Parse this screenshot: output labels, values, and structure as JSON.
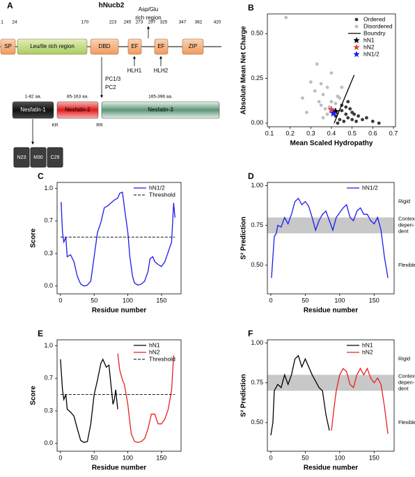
{
  "diagram": {
    "panel_label": "A",
    "title": "hNucb2",
    "positions": [
      1,
      24,
      170,
      223,
      245,
      273,
      297,
      325,
      347,
      382,
      420
    ],
    "domains": [
      "SP",
      "Leu/Ile rich region",
      "DBD",
      "EF",
      "EF",
      "ZIP"
    ],
    "region_label": [
      "Asp/Glu",
      "rich region"
    ],
    "motifs": [
      "HLH1",
      "HLH2"
    ],
    "cleavage": [
      "PC1/3",
      "PC2"
    ],
    "fragments": [
      {
        "range": "1-82 aa.",
        "name": "Nesfatin-1"
      },
      {
        "range": "85-163 aa.",
        "name": "Nesfatin-2"
      },
      {
        "range": "165-396 aa.",
        "name": "Nesfatin-3"
      }
    ],
    "sites": [
      "KR",
      "RR"
    ],
    "subfragments": [
      "N23",
      "M30",
      "C29"
    ]
  },
  "chart_data": [
    {
      "type": "scatter",
      "panel_label": "B",
      "x_label": "Mean Scaled Hydropathy",
      "y_label": "Absolute Mean Net Charge",
      "xlim": [
        0.09,
        0.71
      ],
      "ylim": [
        -0.02,
        0.61
      ],
      "xticks": [
        0.1,
        0.2,
        0.3,
        0.4,
        0.5,
        0.6,
        0.7
      ],
      "yticks": [
        {
          "value": 0,
          "label": "0.00"
        },
        {
          "value": 0.25,
          "label": "0.25"
        },
        {
          "value": 0.5,
          "label": "0.50"
        }
      ],
      "legend": "upper right",
      "series": [
        {
          "name": "Ordered",
          "marker": "circle",
          "color": "#3a3a3a",
          "x": [
            0.42,
            0.44,
            0.45,
            0.46,
            0.47,
            0.48,
            0.49,
            0.5,
            0.51,
            0.52,
            0.53,
            0.55,
            0.57,
            0.6,
            0.63,
            0.45,
            0.48,
            0.5,
            0.43,
            0.47
          ],
          "values": [
            0.04,
            0.02,
            0.07,
            0.01,
            0.05,
            0.03,
            0.08,
            0.02,
            0.05,
            0.01,
            0.04,
            0.02,
            0.03,
            0.01,
            0.0,
            0.1,
            0.12,
            0.06,
            0.0,
            0.09
          ]
        },
        {
          "name": "Disordered",
          "marker": "circle",
          "color": "#bdbdbd",
          "x": [
            0.18,
            0.26,
            0.3,
            0.32,
            0.34,
            0.35,
            0.36,
            0.37,
            0.38,
            0.38,
            0.39,
            0.4,
            0.41,
            0.42,
            0.43,
            0.44,
            0.33,
            0.36,
            0.4,
            0.45,
            0.28,
            0.35
          ],
          "values": [
            0.59,
            0.14,
            0.23,
            0.18,
            0.12,
            0.1,
            0.16,
            0.08,
            0.05,
            0.2,
            0.09,
            0.12,
            0.07,
            0.11,
            0.15,
            0.14,
            0.33,
            0.03,
            0.28,
            0.2,
            0.06,
            0.22
          ]
        },
        {
          "name": "Boundry",
          "marker": "line",
          "color": "#000000",
          "x": [
            0.413,
            0.51
          ],
          "values": [
            0,
            0.269
          ]
        },
        {
          "name": "hN1",
          "marker": "star",
          "color": "#000000",
          "x": [
            0.42
          ],
          "values": [
            0.065
          ]
        },
        {
          "name": "hN2",
          "marker": "star",
          "color": "#e8403f",
          "x": [
            0.4
          ],
          "values": [
            0.075
          ]
        },
        {
          "name": "hN1/2",
          "marker": "star",
          "color": "#1a1aee",
          "x": [
            0.41
          ],
          "values": [
            0.055
          ]
        }
      ]
    },
    {
      "type": "line",
      "panel_label": "C",
      "x_label": "Residue number",
      "y_label": "Score",
      "xlim": [
        -5,
        179
      ],
      "ylim": [
        -0.08,
        1.06
      ],
      "xticks": [
        0,
        50,
        100,
        150
      ],
      "yticks": [
        {
          "value": 0,
          "label": "0.0"
        },
        {
          "value": 0.333,
          "label": "0.3"
        },
        {
          "value": 0.667,
          "label": "0.7"
        },
        {
          "value": 1,
          "label": "1.0"
        }
      ],
      "legend": "upper right",
      "series": [
        {
          "name": "hN1/2",
          "color": "#1a1aee",
          "x": [
            1,
            3,
            5,
            8,
            10,
            15,
            20,
            25,
            30,
            35,
            40,
            45,
            50,
            55,
            60,
            65,
            70,
            75,
            80,
            85,
            88,
            92,
            95,
            100,
            103,
            107,
            110,
            115,
            120,
            125,
            130,
            133,
            137,
            140,
            145,
            150,
            155,
            160,
            165,
            168,
            170
          ],
          "values": [
            0.86,
            0.55,
            0.45,
            0.5,
            0.3,
            0.32,
            0.25,
            0.1,
            0.02,
            0.0,
            0.01,
            0.05,
            0.3,
            0.55,
            0.65,
            0.8,
            0.82,
            0.85,
            0.88,
            0.9,
            0.95,
            0.96,
            0.8,
            0.55,
            0.3,
            0.1,
            0.03,
            0.01,
            0.02,
            0.05,
            0.15,
            0.28,
            0.3,
            0.25,
            0.22,
            0.2,
            0.25,
            0.35,
            0.45,
            0.85,
            0.7
          ]
        },
        {
          "name": "Threshold",
          "color": "#000000",
          "dash": true,
          "x": [
            0,
            170
          ],
          "values": [
            0.5,
            0.5
          ]
        }
      ]
    },
    {
      "type": "line",
      "panel_label": "D",
      "x_label": "Residue number",
      "y_label": "S² Prediction",
      "xlim": [
        -5,
        179
      ],
      "ylim": [
        0.32,
        1.02
      ],
      "xticks": [
        0,
        50,
        100,
        150
      ],
      "yticks": [
        {
          "value": 0.5,
          "label": "0.50"
        },
        {
          "value": 0.75,
          "label": "0.75"
        },
        {
          "value": 1,
          "label": "1.00"
        }
      ],
      "legend": "upper right",
      "band": [
        0.7,
        0.8
      ],
      "annotations": [
        [
          "Rigid"
        ],
        [
          "Context",
          "depen-",
          "dent"
        ],
        [
          "Flexible"
        ]
      ],
      "series": [
        {
          "name": "hN1/2",
          "color": "#1a1aee",
          "x": [
            1,
            3,
            5,
            8,
            10,
            15,
            20,
            25,
            30,
            35,
            40,
            45,
            50,
            55,
            60,
            65,
            70,
            75,
            80,
            85,
            90,
            95,
            100,
            105,
            110,
            115,
            120,
            125,
            130,
            135,
            140,
            145,
            150,
            155,
            160,
            165,
            170
          ],
          "values": [
            0.42,
            0.55,
            0.68,
            0.7,
            0.75,
            0.74,
            0.8,
            0.76,
            0.82,
            0.9,
            0.92,
            0.88,
            0.9,
            0.87,
            0.8,
            0.72,
            0.78,
            0.82,
            0.84,
            0.78,
            0.72,
            0.8,
            0.83,
            0.86,
            0.88,
            0.8,
            0.78,
            0.84,
            0.86,
            0.82,
            0.82,
            0.78,
            0.76,
            0.8,
            0.72,
            0.55,
            0.42
          ]
        }
      ]
    },
    {
      "type": "line",
      "panel_label": "E",
      "x_label": "Residue number",
      "y_label": "Score",
      "xlim": [
        -5,
        179
      ],
      "ylim": [
        -0.08,
        1.06
      ],
      "xticks": [
        0,
        50,
        100,
        150
      ],
      "yticks": [
        {
          "value": 0,
          "label": "0.0"
        },
        {
          "value": 0.333,
          "label": "0.3"
        },
        {
          "value": 0.667,
          "label": "0.7"
        },
        {
          "value": 1,
          "label": "1.0"
        }
      ],
      "legend": "upper right",
      "series": [
        {
          "name": "hN1",
          "color": "#000000",
          "x": [
            0,
            3,
            5,
            8,
            10,
            15,
            20,
            25,
            30,
            35,
            40,
            45,
            50,
            55,
            60,
            63,
            68,
            72,
            75,
            78,
            80,
            82,
            85
          ],
          "values": [
            0.86,
            0.55,
            0.45,
            0.5,
            0.35,
            0.32,
            0.28,
            0.15,
            0.03,
            0.01,
            0.02,
            0.2,
            0.5,
            0.65,
            0.82,
            0.86,
            0.78,
            0.8,
            0.6,
            0.4,
            0.45,
            0.55,
            0.35
          ]
        },
        {
          "name": "hN2",
          "color": "#e8201f",
          "x": [
            85,
            88,
            92,
            95,
            100,
            105,
            110,
            115,
            120,
            125,
            130,
            135,
            140,
            145,
            150,
            155,
            160,
            165,
            168
          ],
          "values": [
            0.92,
            0.75,
            0.65,
            0.6,
            0.4,
            0.1,
            0.02,
            0.01,
            0.02,
            0.05,
            0.15,
            0.3,
            0.3,
            0.2,
            0.2,
            0.25,
            0.35,
            0.55,
            0.9
          ]
        },
        {
          "name": "Threshold",
          "color": "#000000",
          "dash": true,
          "x": [
            0,
            170
          ],
          "values": [
            0.5,
            0.5
          ]
        }
      ]
    },
    {
      "type": "line",
      "panel_label": "F",
      "x_label": "Residue number",
      "y_label": "S² Prediction",
      "xlim": [
        -5,
        179
      ],
      "ylim": [
        0.32,
        1.02
      ],
      "xticks": [
        0,
        50,
        100,
        150
      ],
      "yticks": [
        {
          "value": 0.5,
          "label": "0.50"
        },
        {
          "value": 0.75,
          "label": "0.75"
        },
        {
          "value": 1,
          "label": "1.00"
        }
      ],
      "legend": "upper right",
      "band": [
        0.7,
        0.8
      ],
      "annotations": [
        [
          "Rigid"
        ],
        [
          "Context",
          "depen-",
          "dent"
        ],
        [
          "Flexible"
        ]
      ],
      "series": [
        {
          "name": "hN1",
          "color": "#000000",
          "x": [
            0,
            3,
            5,
            10,
            15,
            20,
            25,
            30,
            35,
            40,
            45,
            50,
            55,
            60,
            65,
            70,
            75,
            80,
            85
          ],
          "values": [
            0.42,
            0.5,
            0.7,
            0.74,
            0.72,
            0.8,
            0.74,
            0.8,
            0.9,
            0.92,
            0.85,
            0.9,
            0.85,
            0.8,
            0.76,
            0.72,
            0.7,
            0.55,
            0.45
          ]
        },
        {
          "name": "hN2",
          "color": "#e8201f",
          "x": [
            88,
            92,
            95,
            100,
            105,
            110,
            115,
            120,
            125,
            130,
            135,
            140,
            145,
            150,
            155,
            160,
            165,
            170
          ],
          "values": [
            0.45,
            0.6,
            0.7,
            0.8,
            0.84,
            0.82,
            0.74,
            0.72,
            0.8,
            0.84,
            0.8,
            0.84,
            0.78,
            0.75,
            0.78,
            0.74,
            0.6,
            0.43
          ]
        }
      ]
    }
  ]
}
